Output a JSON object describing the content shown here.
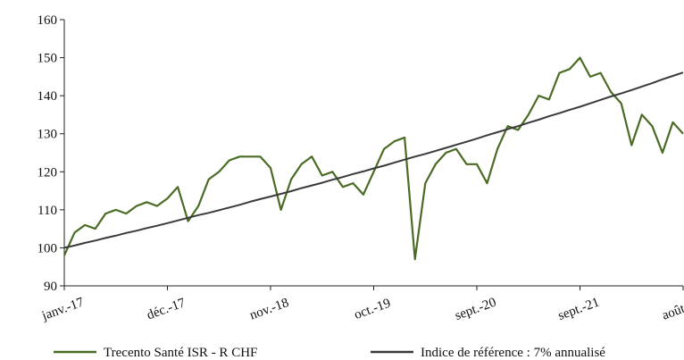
{
  "chart_data": {
    "type": "line",
    "categories": [
      "janv.-17",
      null,
      null,
      null,
      null,
      null,
      null,
      null,
      null,
      null,
      "déc.-17",
      null,
      null,
      null,
      null,
      null,
      null,
      null,
      null,
      null,
      "nov.-18",
      null,
      null,
      null,
      null,
      null,
      null,
      null,
      null,
      null,
      "oct.-19",
      null,
      null,
      null,
      null,
      null,
      null,
      null,
      null,
      null,
      "sept.-20",
      null,
      null,
      null,
      null,
      null,
      null,
      null,
      null,
      null,
      "sept.-21",
      null,
      null,
      null,
      null,
      null,
      null,
      null,
      null,
      null,
      "août-22"
    ],
    "series": [
      {
        "name": "Trecento Santé ISR - R CHF",
        "color": "#4a6b24",
        "values": [
          98,
          104,
          106,
          105,
          109,
          110,
          109,
          111,
          112,
          111,
          113,
          116,
          107,
          111,
          118,
          120,
          123,
          124,
          124,
          124,
          121,
          110,
          118,
          122,
          124,
          119,
          120,
          116,
          117,
          114,
          120,
          126,
          128,
          129,
          97,
          117,
          122,
          125,
          126,
          122,
          122,
          117,
          126,
          132,
          131,
          135,
          140,
          139,
          146,
          147,
          150,
          145,
          146,
          141,
          138,
          127,
          135,
          132,
          125,
          133,
          130
        ]
      },
      {
        "name": "Indice de référence : 7% annualisé",
        "color": "#3a3a3a",
        "values": [
          100.0,
          100.6,
          101.3,
          101.9,
          102.6,
          103.2,
          103.9,
          104.5,
          105.2,
          105.8,
          106.5,
          107.2,
          107.9,
          108.6,
          109.2,
          109.9,
          110.6,
          111.3,
          112.1,
          112.8,
          113.5,
          114.2,
          114.9,
          115.7,
          116.4,
          117.1,
          117.9,
          118.6,
          119.4,
          120.1,
          120.9,
          121.6,
          122.4,
          123.2,
          124.0,
          124.7,
          125.5,
          126.3,
          127.1,
          127.9,
          128.7,
          129.6,
          130.4,
          131.2,
          132.0,
          132.9,
          133.7,
          134.6,
          135.4,
          136.3,
          137.1,
          138.0,
          138.9,
          139.8,
          140.6,
          141.5,
          142.4,
          143.3,
          144.3,
          145.2,
          146.1
        ]
      }
    ],
    "ylim": [
      90,
      160
    ],
    "yticks": [
      90,
      100,
      110,
      120,
      130,
      140,
      150,
      160
    ],
    "grid": false
  }
}
